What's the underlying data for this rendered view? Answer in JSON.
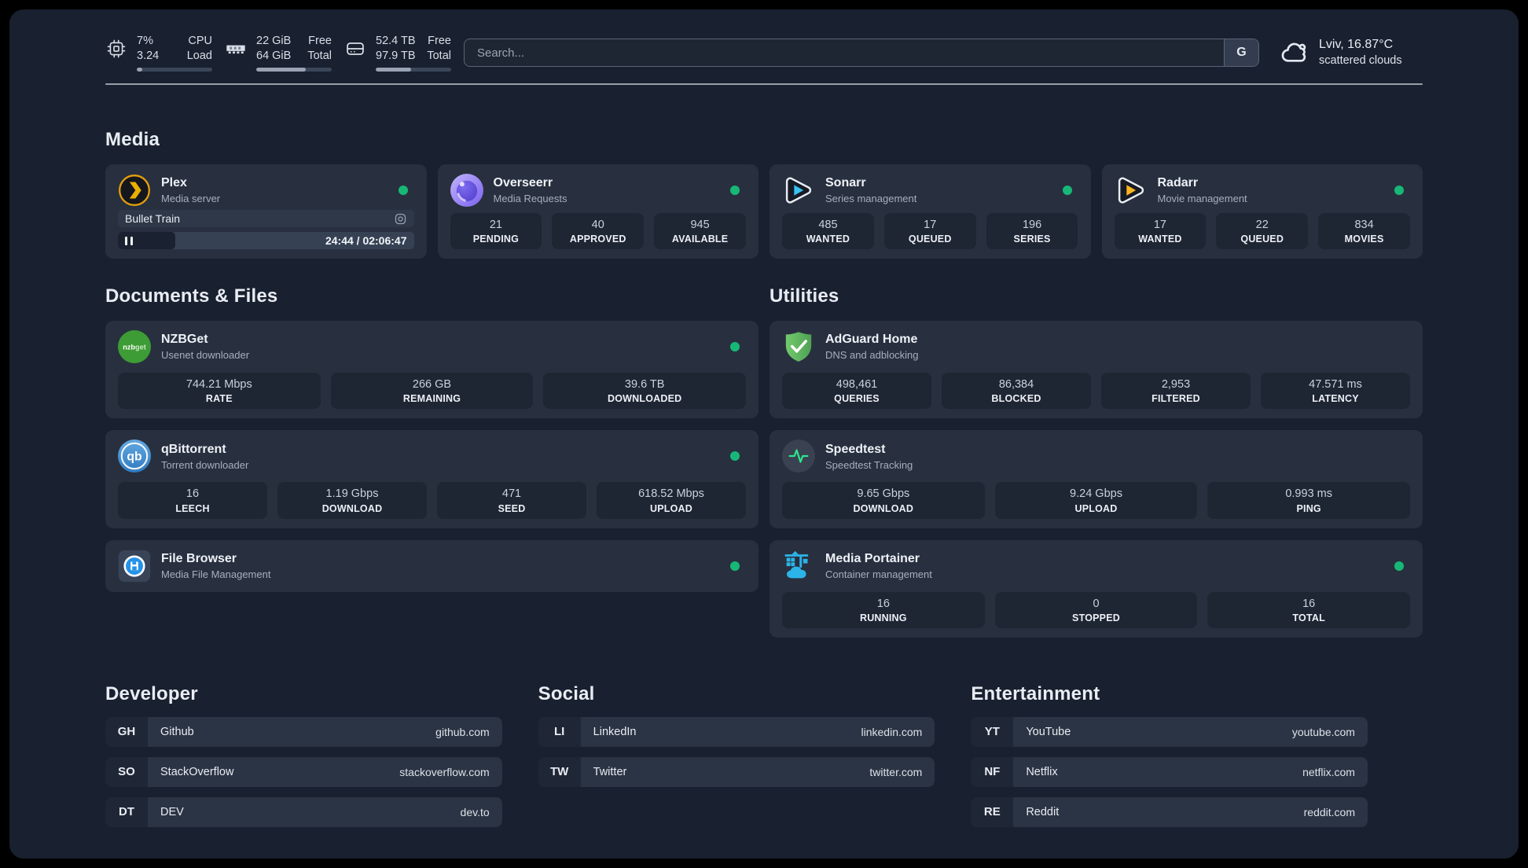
{
  "theme": {
    "background": "#19202F",
    "card_bg": "#28303F",
    "tile_bg": "#1E2533",
    "status_online_green": "#17B877",
    "accent_plex": "#E5A00D",
    "accent_overseerr": "#8A74F0",
    "accent_sonarr": "#38C1F1",
    "accent_radarr": "#FDB51E",
    "accent_nzbget": "#3D9C35",
    "accent_qbittorrent": "#3F8FD0",
    "accent_filebrowser": "#2492E8",
    "accent_adguard": "#5FB75D",
    "accent_speedtest": "#2DE58D",
    "accent_portainer": "#2CB4E8"
  },
  "header": {
    "system_stats": [
      {
        "icon": "cpu-icon",
        "line1_value": "7%",
        "line1_label": "CPU",
        "line2_value": "3.24",
        "line2_label": "Load",
        "progress_pct": 7
      },
      {
        "icon": "ram-icon",
        "line1_value": "22 GiB",
        "line1_label": "Free",
        "line2_value": "64 GiB",
        "line2_label": "Total",
        "progress_pct": 66
      },
      {
        "icon": "disk-icon",
        "line1_value": "52.4 TB",
        "line1_label": "Free",
        "line2_value": "97.9 TB",
        "line2_label": "Total",
        "progress_pct": 47
      }
    ],
    "search": {
      "placeholder": "Search...",
      "engine_button": "G"
    },
    "weather": {
      "icon": "cloud-icon",
      "location_temp": "Lviv, 16.87°C",
      "condition": "scattered clouds"
    }
  },
  "sections": {
    "media": {
      "title": "Media",
      "apps": [
        {
          "name": "Plex",
          "subtitle": "Media server",
          "icon": "plex-icon",
          "online": true,
          "player": {
            "title": "Bullet Train",
            "time": "24:44 / 02:06:47",
            "progress_pct": 19.5
          }
        },
        {
          "name": "Overseerr",
          "subtitle": "Media Requests",
          "icon": "overseerr-icon",
          "online": true,
          "stats": [
            {
              "value": "21",
              "label": "PENDING"
            },
            {
              "value": "40",
              "label": "APPROVED"
            },
            {
              "value": "945",
              "label": "AVAILABLE"
            }
          ]
        },
        {
          "name": "Sonarr",
          "subtitle": "Series management",
          "icon": "sonarr-icon",
          "online": true,
          "stats": [
            {
              "value": "485",
              "label": "WANTED"
            },
            {
              "value": "17",
              "label": "QUEUED"
            },
            {
              "value": "196",
              "label": "SERIES"
            }
          ]
        },
        {
          "name": "Radarr",
          "subtitle": "Movie management",
          "icon": "radarr-icon",
          "online": true,
          "stats": [
            {
              "value": "17",
              "label": "WANTED"
            },
            {
              "value": "22",
              "label": "QUEUED"
            },
            {
              "value": "834",
              "label": "MOVIES"
            }
          ]
        }
      ]
    },
    "documents": {
      "title": "Documents & Files",
      "apps": [
        {
          "name": "NZBGet",
          "subtitle": "Usenet downloader",
          "icon": "nzbget-icon",
          "online": true,
          "stats": [
            {
              "value": "744.21 Mbps",
              "label": "RATE"
            },
            {
              "value": "266 GB",
              "label": "REMAINING"
            },
            {
              "value": "39.6 TB",
              "label": "DOWNLOADED"
            }
          ]
        },
        {
          "name": "qBittorrent",
          "subtitle": "Torrent downloader",
          "icon": "qbittorrent-icon",
          "online": true,
          "stats": [
            {
              "value": "16",
              "label": "LEECH"
            },
            {
              "value": "1.19 Gbps",
              "label": "DOWNLOAD"
            },
            {
              "value": "471",
              "label": "SEED"
            },
            {
              "value": "618.52 Mbps",
              "label": "UPLOAD"
            }
          ]
        },
        {
          "name": "File Browser",
          "subtitle": "Media File Management",
          "icon": "filebrowser-icon",
          "online": true,
          "stats": []
        }
      ]
    },
    "utilities": {
      "title": "Utilities",
      "apps": [
        {
          "name": "AdGuard Home",
          "subtitle": "DNS and adblocking",
          "icon": "adguard-icon",
          "online": false,
          "stats": [
            {
              "value": "498,461",
              "label": "QUERIES"
            },
            {
              "value": "86,384",
              "label": "BLOCKED"
            },
            {
              "value": "2,953",
              "label": "FILTERED"
            },
            {
              "value": "47.571 ms",
              "label": "LATENCY"
            }
          ]
        },
        {
          "name": "Speedtest",
          "subtitle": "Speedtest Tracking",
          "icon": "speedtest-icon",
          "online": false,
          "stats": [
            {
              "value": "9.65 Gbps",
              "label": "DOWNLOAD"
            },
            {
              "value": "9.24 Gbps",
              "label": "UPLOAD"
            },
            {
              "value": "0.993 ms",
              "label": "PING"
            }
          ]
        },
        {
          "name": "Media Portainer",
          "subtitle": "Container management",
          "icon": "portainer-icon",
          "online": true,
          "stats": [
            {
              "value": "16",
              "label": "RUNNING"
            },
            {
              "value": "0",
              "label": "STOPPED"
            },
            {
              "value": "16",
              "label": "TOTAL"
            }
          ]
        }
      ]
    },
    "bookmarks": [
      {
        "title": "Developer",
        "links": [
          {
            "abbr": "GH",
            "name": "Github",
            "url": "github.com"
          },
          {
            "abbr": "SO",
            "name": "StackOverflow",
            "url": "stackoverflow.com"
          },
          {
            "abbr": "DT",
            "name": "DEV",
            "url": "dev.to"
          }
        ]
      },
      {
        "title": "Social",
        "links": [
          {
            "abbr": "LI",
            "name": "LinkedIn",
            "url": "linkedin.com"
          },
          {
            "abbr": "TW",
            "name": "Twitter",
            "url": "twitter.com"
          }
        ]
      },
      {
        "title": "Entertainment",
        "links": [
          {
            "abbr": "YT",
            "name": "YouTube",
            "url": "youtube.com"
          },
          {
            "abbr": "NF",
            "name": "Netflix",
            "url": "netflix.com"
          },
          {
            "abbr": "RE",
            "name": "Reddit",
            "url": "reddit.com"
          }
        ]
      }
    ]
  }
}
